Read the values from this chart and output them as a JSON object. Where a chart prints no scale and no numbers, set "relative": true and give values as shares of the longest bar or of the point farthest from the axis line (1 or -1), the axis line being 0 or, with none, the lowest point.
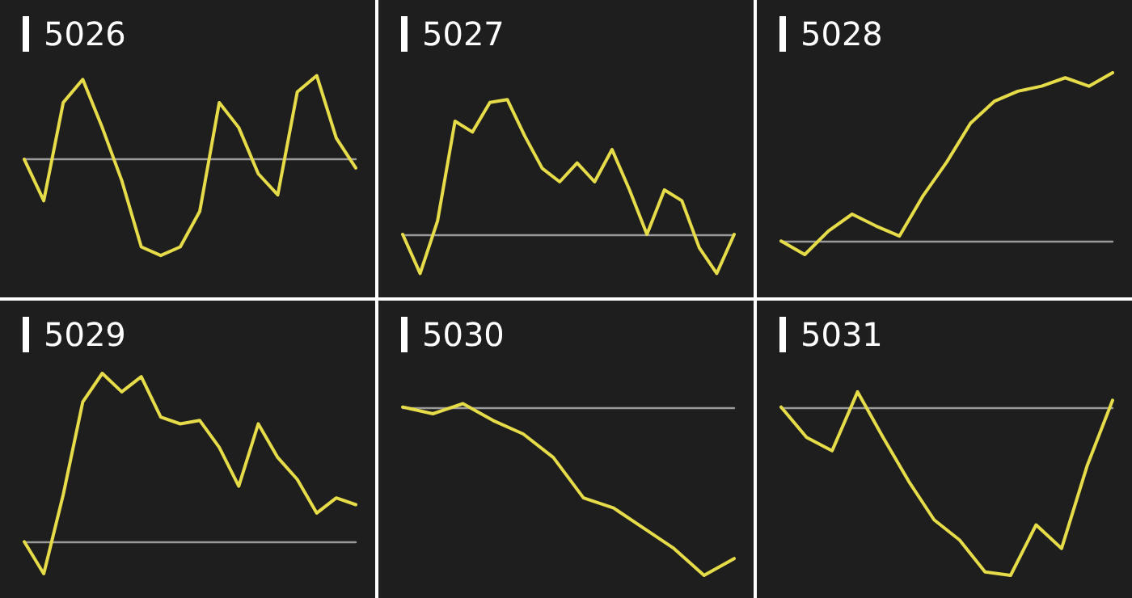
{
  "chart_data": [
    {
      "type": "line",
      "title": "5026",
      "relative": true,
      "color": "#e6dc4a",
      "categories": [
        null,
        null,
        null,
        null,
        null,
        null,
        null,
        null,
        null,
        null,
        null,
        null,
        null,
        null,
        null,
        null,
        null,
        null
      ],
      "values": [
        0,
        -0.43,
        0.59,
        0.83,
        0.33,
        -0.22,
        -0.91,
        -1,
        -0.91,
        -0.54,
        0.59,
        0.33,
        -0.15,
        -0.37,
        0.7,
        0.87,
        0.22,
        -0.09
      ]
    },
    {
      "type": "line",
      "title": "5027",
      "relative": true,
      "color": "#e6dc4a",
      "categories": [
        null,
        null,
        null,
        null,
        null,
        null,
        null,
        null,
        null,
        null,
        null,
        null,
        null,
        null,
        null,
        null,
        null,
        null,
        null,
        null
      ],
      "values": [
        0,
        -0.29,
        0.1,
        0.84,
        0.76,
        0.98,
        1,
        0.73,
        0.49,
        0.39,
        0.53,
        0.39,
        0.63,
        0.33,
        0,
        0.33,
        0.25,
        -0.1,
        -0.29,
        0
      ]
    },
    {
      "type": "line",
      "title": "5028",
      "relative": true,
      "color": "#e6dc4a",
      "categories": [
        null,
        null,
        null,
        null,
        null,
        null,
        null,
        null,
        null,
        null,
        null,
        null,
        null,
        null,
        null
      ],
      "values": [
        0,
        -0.08,
        0.06,
        0.16,
        0.09,
        0.03,
        0.27,
        0.47,
        0.7,
        0.83,
        0.89,
        0.92,
        0.97,
        0.92,
        1
      ]
    },
    {
      "type": "line",
      "title": "5029",
      "relative": true,
      "color": "#e6dc4a",
      "categories": [
        null,
        null,
        null,
        null,
        null,
        null,
        null,
        null,
        null,
        null,
        null,
        null,
        null,
        null,
        null,
        null,
        null,
        null
      ],
      "values": [
        0,
        -0.19,
        0.28,
        0.83,
        1,
        0.89,
        0.98,
        0.74,
        0.7,
        0.72,
        0.56,
        0.33,
        0.7,
        0.5,
        0.37,
        0.17,
        0.26,
        0.22
      ]
    },
    {
      "type": "line",
      "title": "5030",
      "relative": true,
      "color": "#e6dc4a",
      "categories": [
        null,
        null,
        null,
        null,
        null,
        null,
        null,
        null,
        null,
        null,
        null,
        null
      ],
      "values": [
        0,
        -0.04,
        0.02,
        -0.08,
        -0.16,
        -0.3,
        -0.54,
        -0.6,
        -0.72,
        -0.84,
        -1,
        -0.9
      ]
    },
    {
      "type": "line",
      "title": "5031",
      "relative": true,
      "color": "#e6dc4a",
      "categories": [
        null,
        null,
        null,
        null,
        null,
        null,
        null,
        null,
        null,
        null,
        null,
        null,
        null,
        null
      ],
      "values": [
        0,
        -0.18,
        -0.26,
        0.09,
        -0.18,
        -0.44,
        -0.67,
        -0.79,
        -0.98,
        -1,
        -0.7,
        -0.84,
        -0.35,
        0.04
      ]
    }
  ]
}
